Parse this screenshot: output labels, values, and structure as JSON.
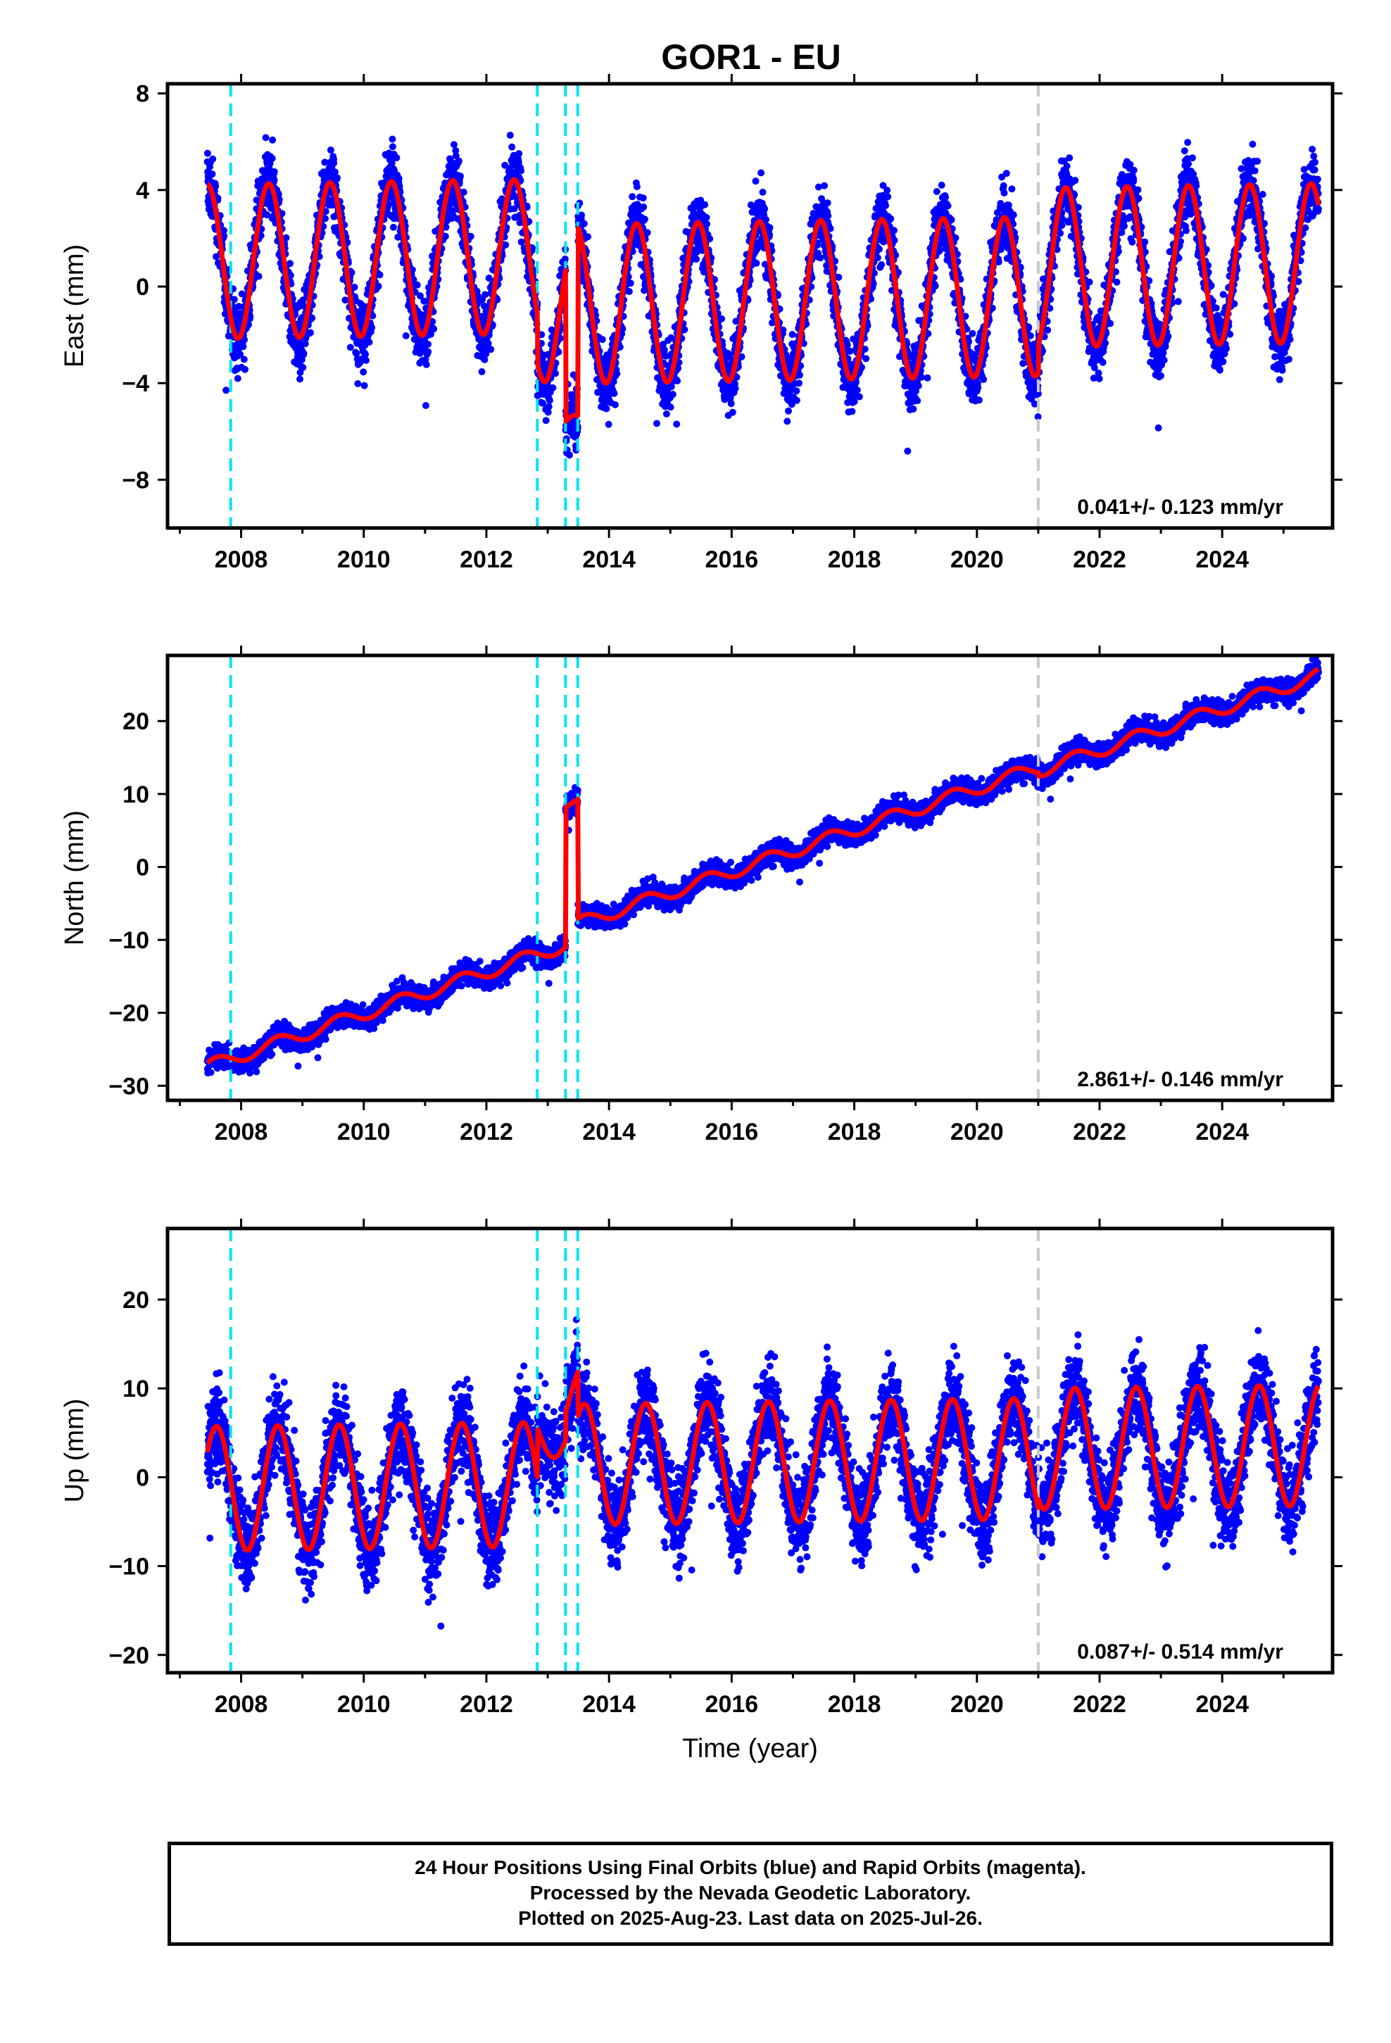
{
  "title": "GOR1 - EU",
  "colors": {
    "points": "#0000ff",
    "model": "#ff0000",
    "breaks": "#00e5ee",
    "break_gray": "#c8c8c8"
  },
  "chart_data": [
    {
      "type": "scatter",
      "name": "east",
      "ylabel": "East (mm)",
      "xlabel": "",
      "xlim": [
        2006.8,
        2025.8
      ],
      "ylim": [
        -10,
        8.4
      ],
      "yticks": [
        "8",
        "4",
        "0",
        "−4",
        "−8"
      ],
      "ytick_values": [
        8,
        4,
        0,
        -4,
        -8
      ],
      "xticks": [
        "2008",
        "2010",
        "2012",
        "2014",
        "2016",
        "2018",
        "2020",
        "2022",
        "2024"
      ],
      "xtick_values": [
        2008,
        2010,
        2012,
        2014,
        2016,
        2018,
        2020,
        2022,
        2024
      ],
      "breaks": [
        2007.83,
        2012.83,
        2013.29,
        2013.49
      ],
      "break_gray": [
        2021.0
      ],
      "rate_text": "0.041+/- 0.123 mm/yr",
      "model": {
        "start": 2007.45,
        "end": 2025.57,
        "trend": 0.041,
        "segments": [
          {
            "from": 2007.45,
            "to": 2012.83,
            "offset": 1.4,
            "amp": 3.2,
            "peak": 0.45
          },
          {
            "from": 2012.83,
            "to": 2013.29,
            "offset": -0.8,
            "amp": 3.0,
            "peak": 0.45
          },
          {
            "from": 2013.29,
            "to": 2013.49,
            "offset": -5.8,
            "amp": 0.6,
            "peak": 0.45
          },
          {
            "from": 2013.49,
            "to": 2021.0,
            "offset": -0.6,
            "amp": 3.3,
            "peak": 0.45
          },
          {
            "from": 2021.0,
            "to": 2025.57,
            "offset": 0.6,
            "amp": 3.3,
            "peak": 0.45
          }
        ],
        "noise": 1.2
      }
    },
    {
      "type": "scatter",
      "name": "north",
      "ylabel": "North (mm)",
      "xlabel": "",
      "xlim": [
        2006.8,
        2025.8
      ],
      "ylim": [
        -32,
        29
      ],
      "yticks": [
        "20",
        "10",
        "0",
        "−10",
        "−20",
        "−30"
      ],
      "ytick_values": [
        20,
        10,
        0,
        -10,
        -20,
        -30
      ],
      "xticks": [
        "2008",
        "2010",
        "2012",
        "2014",
        "2016",
        "2018",
        "2020",
        "2022",
        "2024"
      ],
      "xtick_values": [
        2008,
        2010,
        2012,
        2014,
        2016,
        2018,
        2020,
        2022,
        2024
      ],
      "breaks": [
        2007.83,
        2012.83,
        2013.29,
        2013.49
      ],
      "break_gray": [
        2021.0
      ],
      "rate_text": "2.861+/- 0.146 mm/yr",
      "model": {
        "start": 2007.45,
        "end": 2025.57,
        "trend": 2.861,
        "ref": 2016.5,
        "segments": [
          {
            "from": 2007.45,
            "to": 2013.29,
            "offset": -1.5,
            "amp": 0.9,
            "peak": 0.6
          },
          {
            "from": 2013.29,
            "to": 2013.49,
            "offset": 17.5,
            "amp": 0.5,
            "peak": 0.6
          },
          {
            "from": 2013.49,
            "to": 2021.0,
            "offset": 0.8,
            "amp": 0.9,
            "peak": 0.6
          },
          {
            "from": 2021.0,
            "to": 2025.57,
            "offset": 0.3,
            "amp": 0.9,
            "peak": 0.6
          }
        ],
        "noise": 1.3
      }
    },
    {
      "type": "scatter",
      "name": "up",
      "ylabel": "Up (mm)",
      "xlabel": "Time (year)",
      "xlim": [
        2006.8,
        2025.8
      ],
      "ylim": [
        -22,
        28
      ],
      "yticks": [
        "20",
        "10",
        "0",
        "−10",
        "−20"
      ],
      "ytick_values": [
        20,
        10,
        0,
        -10,
        -20
      ],
      "xticks": [
        "2008",
        "2010",
        "2012",
        "2014",
        "2016",
        "2018",
        "2020",
        "2022",
        "2024"
      ],
      "xtick_values": [
        2008,
        2010,
        2012,
        2014,
        2016,
        2018,
        2020,
        2022,
        2024
      ],
      "breaks": [
        2007.83,
        2012.83,
        2013.29,
        2013.49
      ],
      "break_gray": [
        2021.0
      ],
      "rate_text": "0.087+/- 0.514 mm/yr",
      "model": {
        "start": 2007.45,
        "end": 2025.57,
        "trend": 0.087,
        "segments": [
          {
            "from": 2007.45,
            "to": 2012.83,
            "offset": -0.5,
            "amp": 7.0,
            "peak": 0.6
          },
          {
            "from": 2012.83,
            "to": 2013.29,
            "offset": 5.5,
            "amp": 3.0,
            "peak": 0.6
          },
          {
            "from": 2013.29,
            "to": 2013.49,
            "offset": 9.0,
            "amp": 4.0,
            "peak": 0.6
          },
          {
            "from": 2013.49,
            "to": 2021.0,
            "offset": 1.7,
            "amp": 6.8,
            "peak": 0.6
          },
          {
            "from": 2021.0,
            "to": 2025.57,
            "offset": 2.8,
            "amp": 6.8,
            "peak": 0.6
          }
        ],
        "noise": 4.2
      }
    }
  ],
  "caption": {
    "line1": "24 Hour Positions Using Final Orbits (blue) and Rapid Orbits (magenta).",
    "line2": "Processed by the Nevada Geodetic Laboratory.",
    "line3": "Plotted on 2025-Aug-23. Last data on 2025-Jul-26."
  }
}
